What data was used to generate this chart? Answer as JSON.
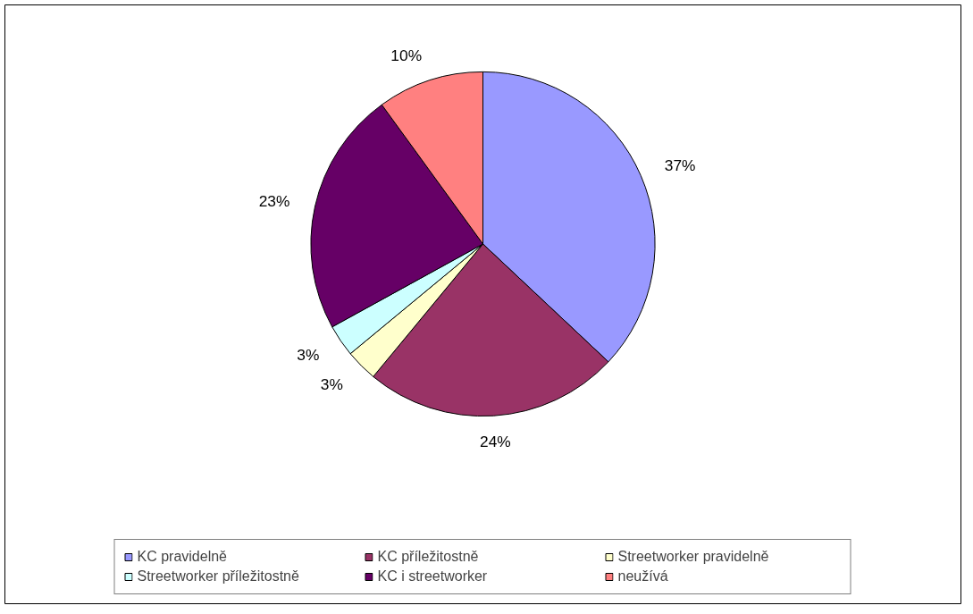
{
  "chart_data": {
    "type": "pie",
    "categories": [
      "KC pravidelně",
      "KC příležitostně",
      "Streetworker pravidelně",
      "Streetworker příležitostně",
      "KC i streetworker",
      "neužívá"
    ],
    "values": [
      37,
      24,
      3,
      3,
      23,
      10
    ],
    "colors": [
      "#9999ff",
      "#993366",
      "#ffffcc",
      "#ccffff",
      "#660066",
      "#ff8080"
    ],
    "value_labels": [
      "37%",
      "24%",
      "3%",
      "3%",
      "23%",
      "10%"
    ],
    "legend": "bottom"
  }
}
